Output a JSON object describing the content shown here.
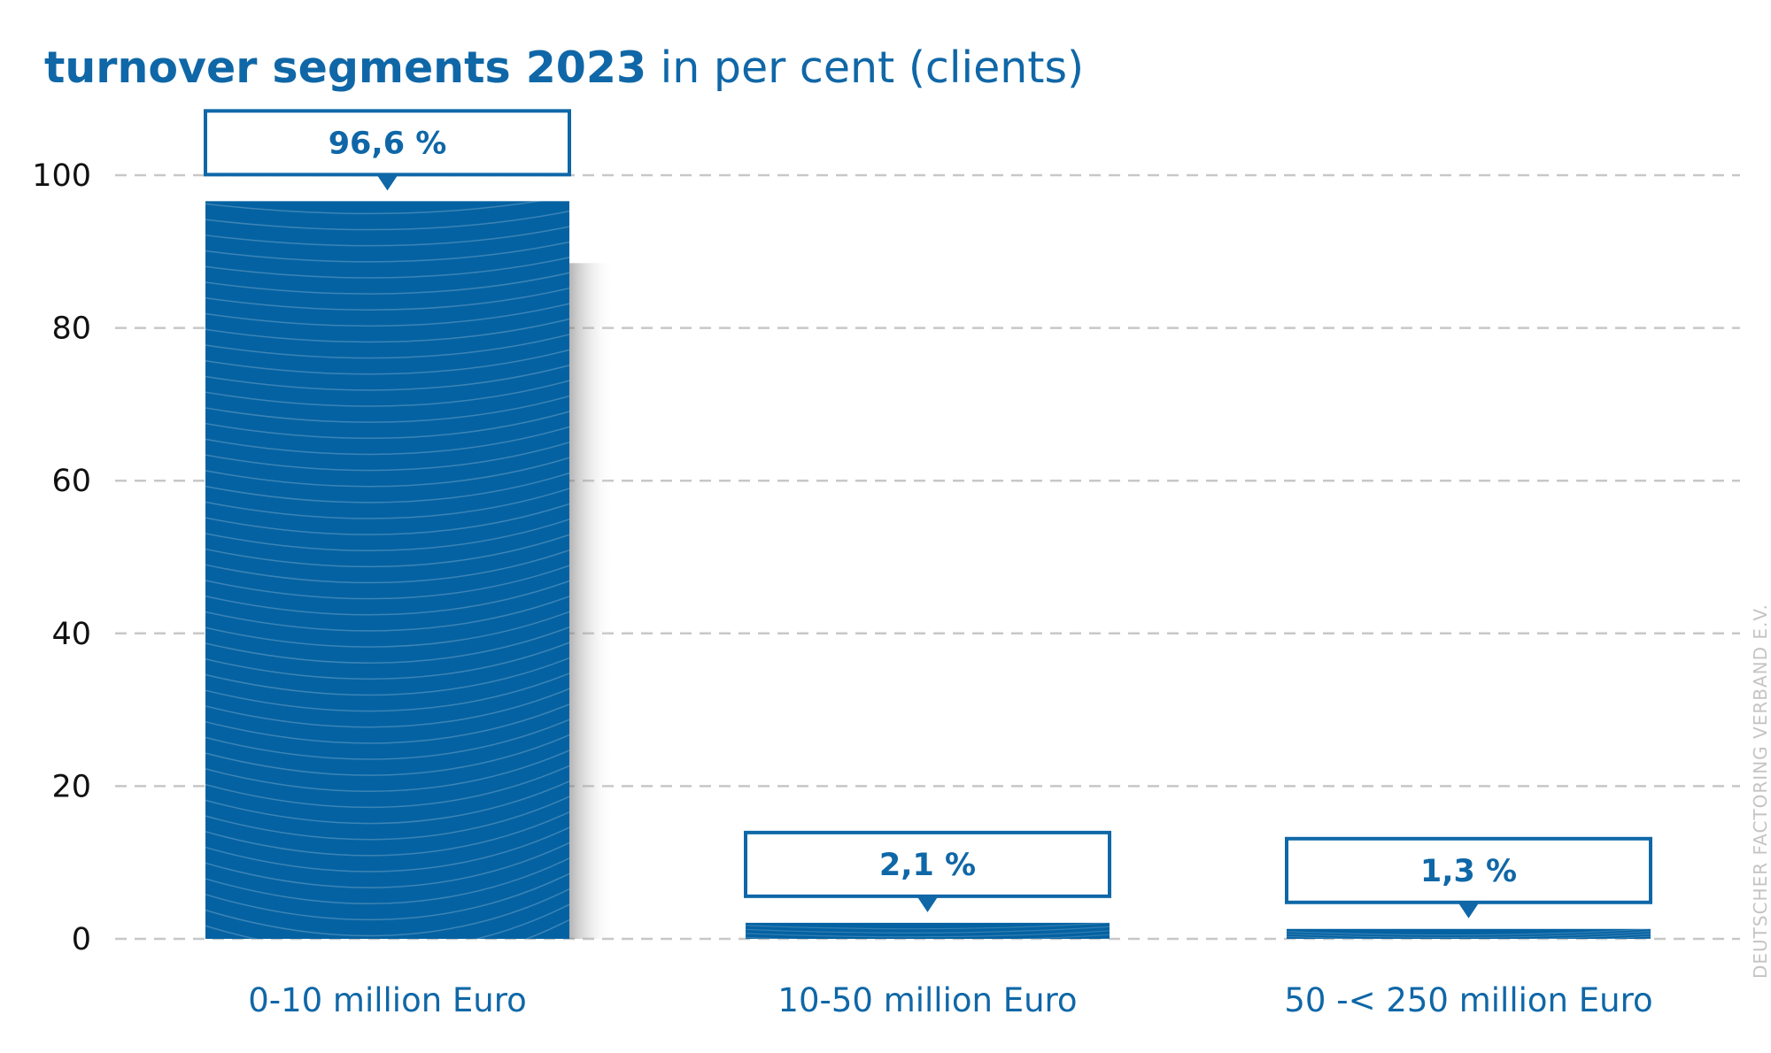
{
  "title": {
    "bold": "turnover segments 2023",
    "rest": "in per cent (clients)"
  },
  "source": "DEUTSCHER FACTORING VERBAND E.V.",
  "colors": {
    "bar": "#0562a2",
    "accent": "#0f67a7",
    "grid": "#c7c7c7"
  },
  "chart_data": {
    "type": "bar",
    "categories": [
      "0-10 million Euro",
      "10-50 million Euro",
      "50 -< 250 million Euro"
    ],
    "values": [
      96.6,
      2.1,
      1.3
    ],
    "value_labels": [
      "96,6 %",
      "2,1 %",
      "1,3 %"
    ],
    "title": "turnover segments 2023 in per cent (clients)",
    "xlabel": "",
    "ylabel": "",
    "ylim": [
      0,
      100
    ],
    "yticks": [
      0,
      20,
      40,
      60,
      80,
      100
    ],
    "grid": true
  }
}
